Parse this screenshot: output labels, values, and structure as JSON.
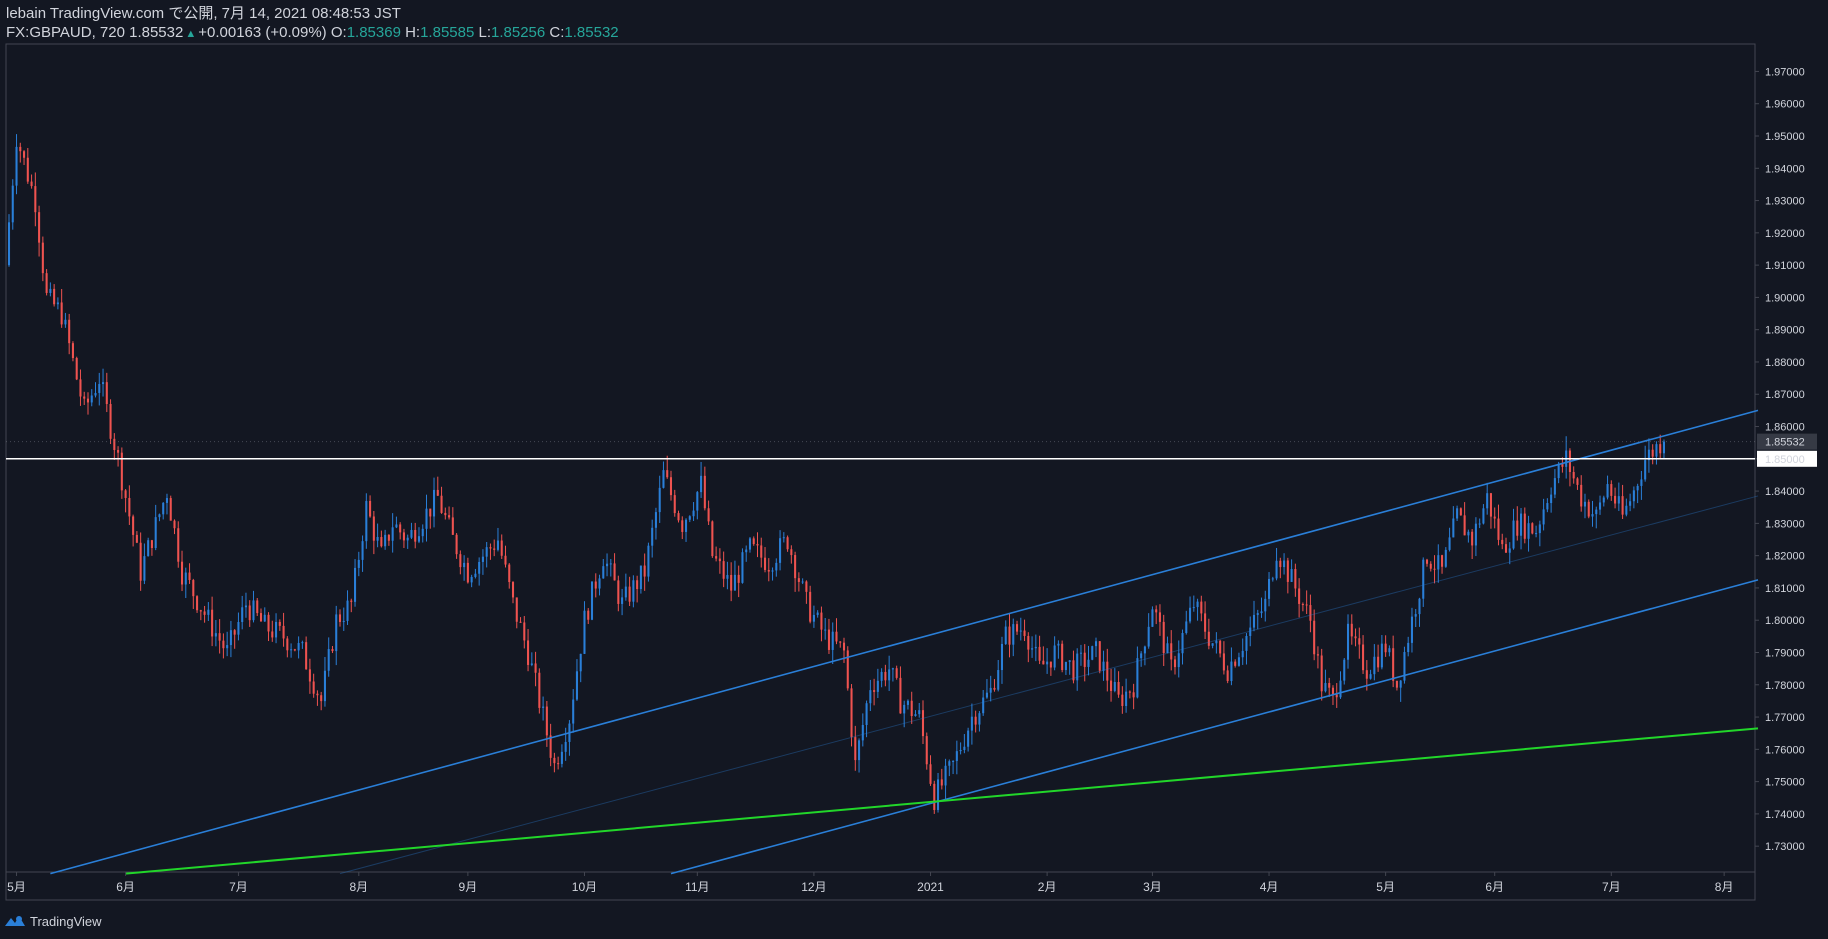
{
  "header": {
    "publish_line": "lebain TradingView.com で公開, 7月 14, 2021 08:48:53 JST",
    "symbol": "FX:GBPAUD, 720",
    "last": "1.85532",
    "change": "+0.00163 (+0.09%)",
    "o_label": "O:",
    "o_value": "1.85369",
    "h_label": "H:",
    "h_value": "1.85585",
    "l_label": "L:",
    "l_value": "1.85256",
    "c_label": "C:",
    "c_value": "1.85532"
  },
  "footer": {
    "brand": "TradingView"
  },
  "colors": {
    "background": "#131722",
    "up": "#2a7fd8",
    "down": "#ef5350",
    "channel": "#2a7fd8",
    "support": "#22d62a",
    "hline": "#ffffff",
    "axis_text": "#d1d4dc"
  },
  "chart_data": {
    "type": "candlestick",
    "symbol": "GBPAUD",
    "timeframe": "720",
    "ylim": [
      1.722,
      1.9785
    ],
    "y_ticks": [
      "1.73000",
      "1.74000",
      "1.75000",
      "1.76000",
      "1.77000",
      "1.78000",
      "1.79000",
      "1.80000",
      "1.81000",
      "1.82000",
      "1.83000",
      "1.84000",
      "1.85000",
      "1.86000",
      "1.87000",
      "1.88000",
      "1.89000",
      "1.90000",
      "1.91000",
      "1.92000",
      "1.93000",
      "1.94000",
      "1.95000",
      "1.96000",
      "1.97000"
    ],
    "x_ticks": [
      "5月",
      "6月",
      "7月",
      "8月",
      "9月",
      "10月",
      "11月",
      "12月",
      "2021",
      "2月",
      "3月",
      "4月",
      "5月",
      "6月",
      "7月",
      "8月"
    ],
    "x_tick_index": [
      2,
      31,
      61,
      93,
      122,
      153,
      183,
      214,
      245,
      276,
      304,
      335,
      366,
      395,
      426,
      456
    ],
    "x_range": [
      0,
      465
    ],
    "last_price": "1.85532",
    "hline_label": "1.85000",
    "hline_price": 1.85,
    "trend_lines": [
      {
        "name": "channel-upper",
        "points": [
          [
            11,
            1.7215
          ],
          [
            465,
            1.865
          ]
        ]
      },
      {
        "name": "channel-lower",
        "points": [
          [
            176,
            1.7215
          ],
          [
            465,
            1.8125
          ]
        ]
      },
      {
        "name": "channel-mid",
        "points": [
          [
            88,
            1.7215
          ],
          [
            465,
            1.8385
          ]
        ]
      },
      {
        "name": "support-green",
        "points": [
          [
            31,
            1.7215
          ],
          [
            465,
            1.7665
          ]
        ]
      }
    ],
    "anchors": [
      [
        0,
        1.91
      ],
      [
        3,
        1.95
      ],
      [
        8,
        1.93
      ],
      [
        11,
        1.9
      ],
      [
        15,
        1.895
      ],
      [
        21,
        1.865
      ],
      [
        25,
        1.875
      ],
      [
        30,
        1.85
      ],
      [
        36,
        1.815
      ],
      [
        43,
        1.84
      ],
      [
        47,
        1.815
      ],
      [
        54,
        1.8
      ],
      [
        59,
        1.79
      ],
      [
        64,
        1.805
      ],
      [
        69,
        1.798
      ],
      [
        74,
        1.795
      ],
      [
        79,
        1.79
      ],
      [
        84,
        1.775
      ],
      [
        88,
        1.8
      ],
      [
        92,
        1.805
      ],
      [
        96,
        1.835
      ],
      [
        100,
        1.82
      ],
      [
        103,
        1.83
      ],
      [
        107,
        1.825
      ],
      [
        110,
        1.83
      ],
      [
        115,
        1.838
      ],
      [
        119,
        1.825
      ],
      [
        123,
        1.815
      ],
      [
        127,
        1.82
      ],
      [
        131,
        1.825
      ],
      [
        135,
        1.805
      ],
      [
        139,
        1.79
      ],
      [
        143,
        1.77
      ],
      [
        146,
        1.755
      ],
      [
        150,
        1.77
      ],
      [
        154,
        1.8
      ],
      [
        159,
        1.82
      ],
      [
        164,
        1.805
      ],
      [
        170,
        1.815
      ],
      [
        175,
        1.845
      ],
      [
        180,
        1.83
      ],
      [
        185,
        1.842
      ],
      [
        188,
        1.82
      ],
      [
        193,
        1.81
      ],
      [
        198,
        1.822
      ],
      [
        203,
        1.818
      ],
      [
        208,
        1.825
      ],
      [
        213,
        1.805
      ],
      [
        218,
        1.795
      ],
      [
        223,
        1.79
      ],
      [
        226,
        1.755
      ],
      [
        230,
        1.78
      ],
      [
        235,
        1.785
      ],
      [
        238,
        1.775
      ],
      [
        243,
        1.77
      ],
      [
        247,
        1.745
      ],
      [
        252,
        1.755
      ],
      [
        257,
        1.77
      ],
      [
        262,
        1.778
      ],
      [
        266,
        1.795
      ],
      [
        271,
        1.798
      ],
      [
        275,
        1.785
      ],
      [
        279,
        1.79
      ],
      [
        284,
        1.785
      ],
      [
        290,
        1.79
      ],
      [
        296,
        1.775
      ],
      [
        300,
        1.78
      ],
      [
        305,
        1.805
      ],
      [
        310,
        1.785
      ],
      [
        316,
        1.805
      ],
      [
        320,
        1.795
      ],
      [
        325,
        1.785
      ],
      [
        330,
        1.795
      ],
      [
        335,
        1.805
      ],
      [
        338,
        1.822
      ],
      [
        343,
        1.81
      ],
      [
        347,
        1.8
      ],
      [
        350,
        1.78
      ],
      [
        353,
        1.775
      ],
      [
        357,
        1.795
      ],
      [
        362,
        1.785
      ],
      [
        367,
        1.792
      ],
      [
        370,
        1.78
      ],
      [
        374,
        1.8
      ],
      [
        378,
        1.82
      ],
      [
        382,
        1.815
      ],
      [
        386,
        1.832
      ],
      [
        390,
        1.825
      ],
      [
        394,
        1.838
      ],
      [
        398,
        1.822
      ],
      [
        402,
        1.83
      ],
      [
        407,
        1.828
      ],
      [
        411,
        1.842
      ],
      [
        415,
        1.85
      ],
      [
        419,
        1.838
      ],
      [
        423,
        1.832
      ],
      [
        426,
        1.842
      ],
      [
        430,
        1.832
      ],
      [
        433,
        1.84
      ],
      [
        436,
        1.85
      ],
      [
        440,
        1.855
      ]
    ]
  }
}
